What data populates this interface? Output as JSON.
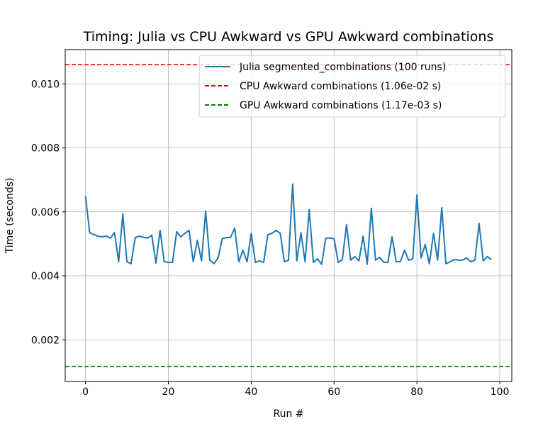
{
  "chart_data": {
    "type": "line",
    "title": "Timing: Julia vs CPU Awkward vs GPU Awkward combinations",
    "xlabel": "Run #",
    "ylabel": "Time (seconds)",
    "xlim": [
      -4.9,
      102.9
    ],
    "ylim": [
      0.000698,
      0.01107
    ],
    "xticks": [
      0,
      20,
      40,
      60,
      80,
      100
    ],
    "xtick_labels": [
      "0",
      "20",
      "40",
      "60",
      "80",
      "100"
    ],
    "yticks": [
      0.002,
      0.004,
      0.006,
      0.008,
      0.01
    ],
    "ytick_labels": [
      "0.002",
      "0.004",
      "0.006",
      "0.008",
      "0.010"
    ],
    "grid": true,
    "legend_position": "top-right",
    "series": [
      {
        "name": "Julia segmented_combinations (100 runs)",
        "color": "#1f77b4",
        "style": "solid",
        "values": [
          0.00649,
          0.00535,
          0.00529,
          0.00524,
          0.00522,
          0.00524,
          0.00518,
          0.00535,
          0.00444,
          0.00593,
          0.00444,
          0.00438,
          0.0052,
          0.00524,
          0.0052,
          0.00518,
          0.00527,
          0.0044,
          0.00542,
          0.00444,
          0.00442,
          0.00442,
          0.00538,
          0.00522,
          0.00533,
          0.00542,
          0.00444,
          0.00511,
          0.00447,
          0.00602,
          0.00449,
          0.00438,
          0.00456,
          0.00516,
          0.0052,
          0.0052,
          0.00549,
          0.00444,
          0.0048,
          0.00444,
          0.00533,
          0.00442,
          0.00447,
          0.00442,
          0.00529,
          0.00533,
          0.00542,
          0.00533,
          0.00444,
          0.00449,
          0.00687,
          0.00447,
          0.00535,
          0.00444,
          0.00607,
          0.00442,
          0.00453,
          0.00436,
          0.00518,
          0.00518,
          0.00516,
          0.00442,
          0.00451,
          0.0056,
          0.00449,
          0.0046,
          0.00447,
          0.00524,
          0.00436,
          0.00611,
          0.00449,
          0.00458,
          0.00442,
          0.00442,
          0.00522,
          0.00444,
          0.00444,
          0.0048,
          0.00449,
          0.00453,
          0.00653,
          0.00456,
          0.00498,
          0.00438,
          0.00533,
          0.00449,
          0.00613,
          0.00438,
          0.00444,
          0.00451,
          0.00449,
          0.00449,
          0.00456,
          0.00444,
          0.00449,
          0.00564,
          0.00447,
          0.0046,
          0.00451
        ]
      },
      {
        "name": "CPU Awkward combinations (1.06e-02 s)",
        "color": "#ff0000",
        "style": "dashed",
        "hline": 0.0106
      },
      {
        "name": "GPU Awkward combinations (1.17e-03 s)",
        "color": "#008000",
        "style": "dashed",
        "hline": 0.00117
      }
    ]
  }
}
